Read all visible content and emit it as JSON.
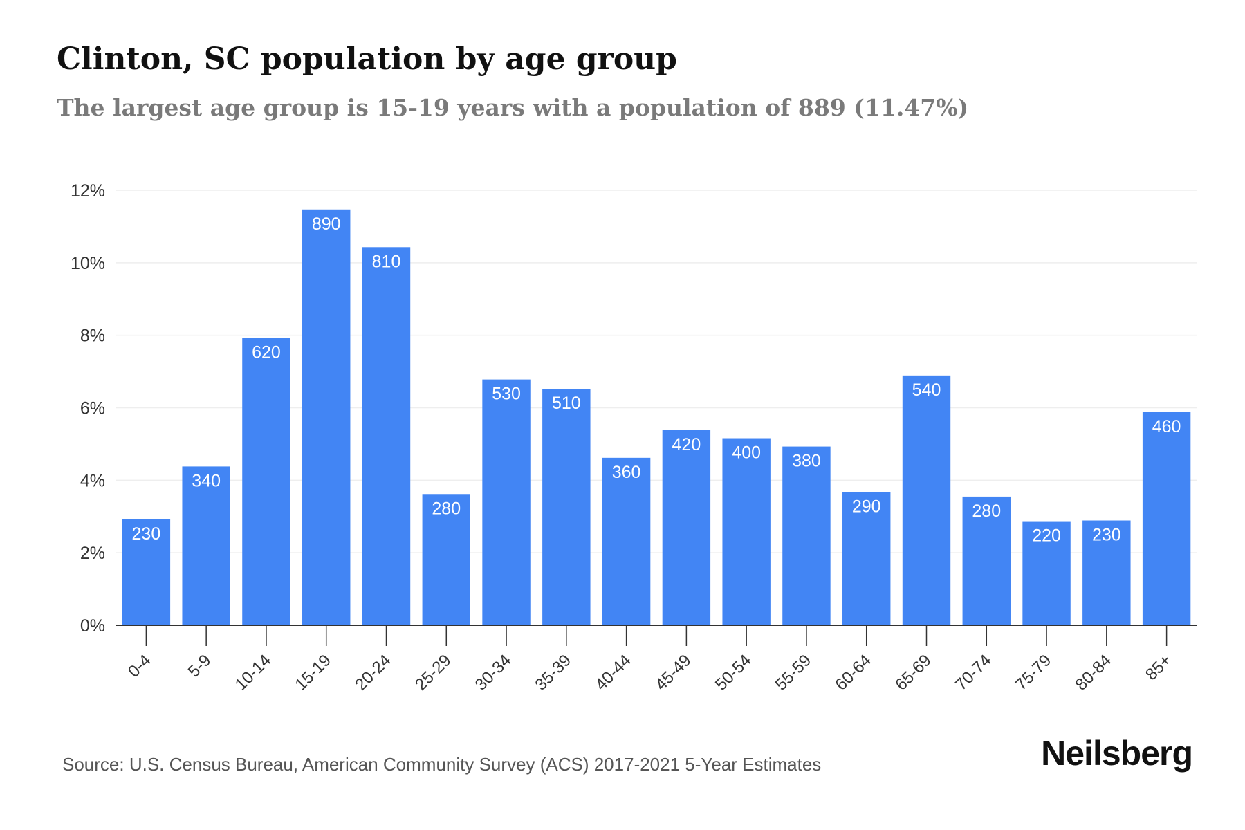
{
  "title": "Clinton, SC population by age group",
  "subtitle": "The largest age group is 15-19 years with a population of 889 (11.47%)",
  "source": "Source: U.S. Census Bureau, American Community Survey (ACS) 2017-2021 5-Year Estimates",
  "brand": "Neilsberg",
  "colors": {
    "bar": "#4285f4",
    "bar_label": "#ffffff",
    "axis": "#333333",
    "grid": "#eeeeee",
    "tick_text": "#333333"
  },
  "chart_data": {
    "type": "bar",
    "title": "Clinton, SC population by age group",
    "subtitle": "The largest age group is 15-19 years with a population of 889 (11.47%)",
    "categories": [
      "0-4",
      "5-9",
      "10-14",
      "15-19",
      "20-24",
      "25-29",
      "30-34",
      "35-39",
      "40-44",
      "45-49",
      "50-54",
      "55-59",
      "60-64",
      "65-69",
      "70-74",
      "75-79",
      "80-84",
      "85+"
    ],
    "values": [
      2.92,
      4.38,
      7.93,
      11.47,
      10.43,
      3.62,
      6.78,
      6.52,
      4.62,
      5.38,
      5.16,
      4.93,
      3.67,
      6.89,
      3.55,
      2.87,
      2.89,
      5.88
    ],
    "labels": [
      "230",
      "340",
      "620",
      "890",
      "810",
      "280",
      "530",
      "510",
      "360",
      "420",
      "400",
      "380",
      "290",
      "540",
      "280",
      "220",
      "230",
      "460"
    ],
    "yticks": [
      "0%",
      "2%",
      "4%",
      "6%",
      "8%",
      "10%",
      "12%"
    ],
    "ylim": [
      0,
      12
    ],
    "grid": true,
    "legend": "none"
  }
}
